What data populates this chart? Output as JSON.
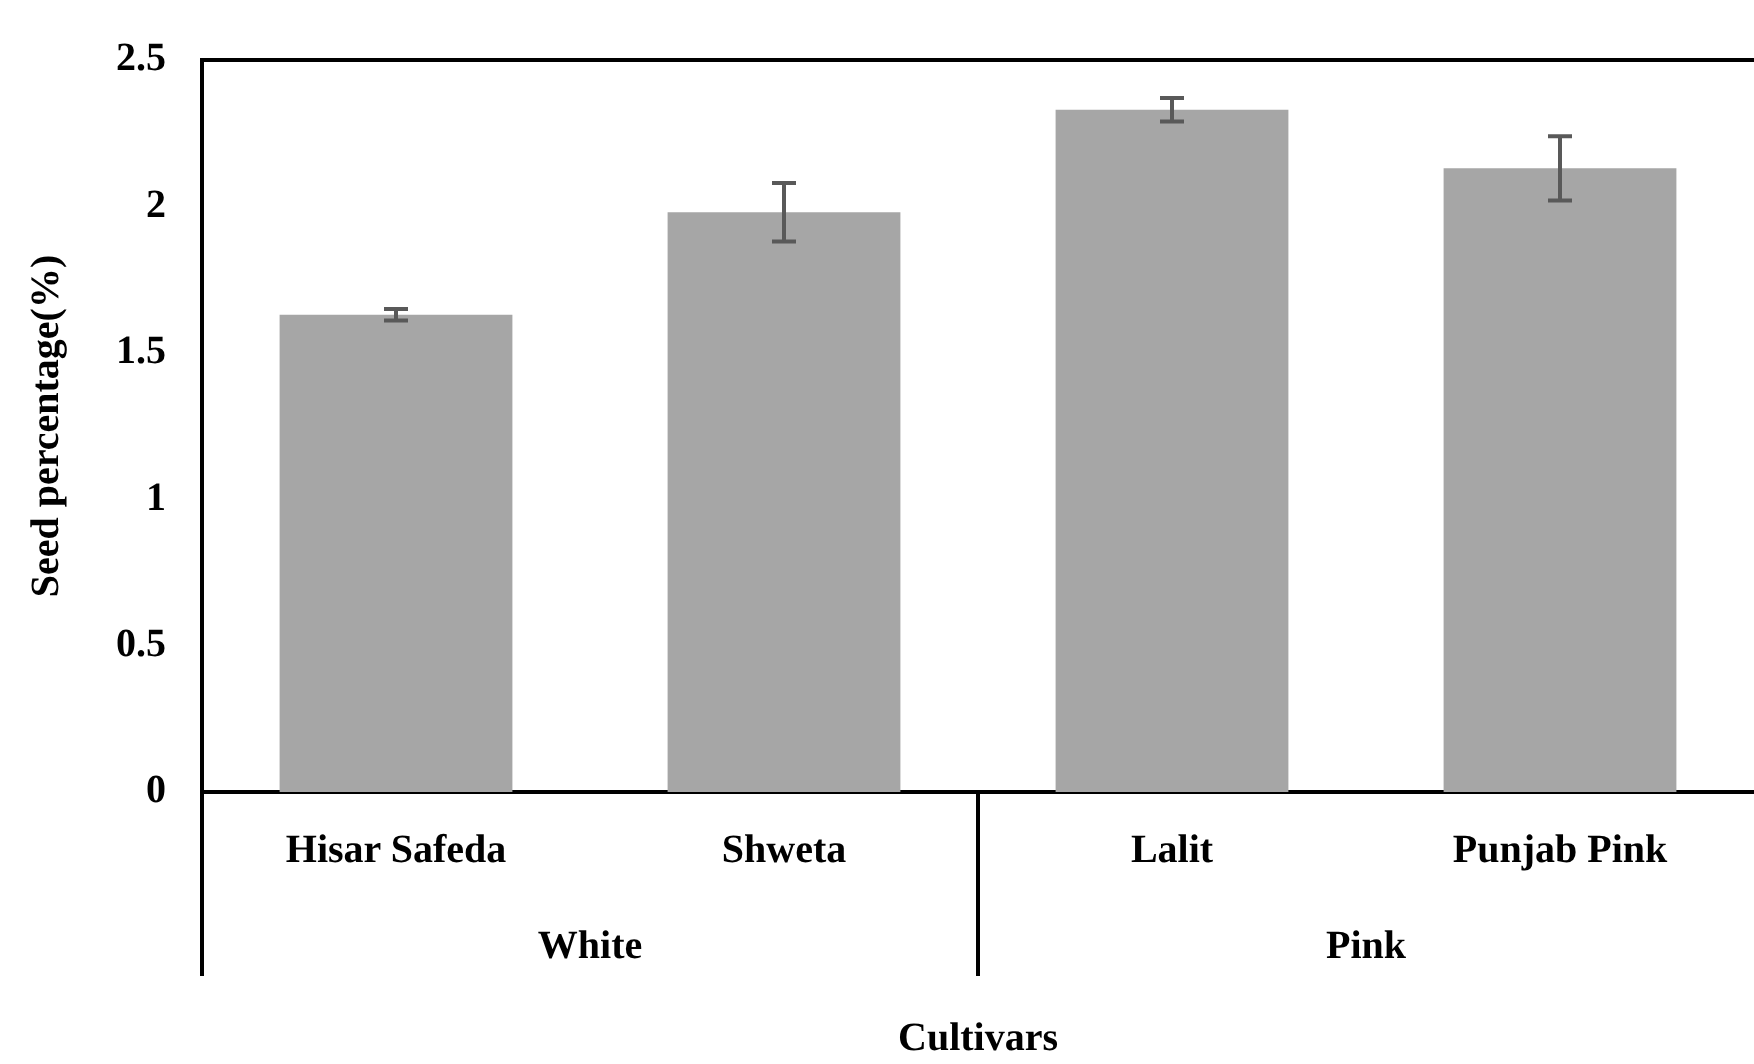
{
  "chart_data": {
    "type": "bar",
    "xlabel": "Cultivars",
    "ylabel": "Seed percentage(%)",
    "categories": [
      "Hisar Safeda",
      "Shweta",
      "Lalit",
      "Punjab Pink"
    ],
    "values": [
      1.63,
      1.98,
      2.33,
      2.13
    ],
    "errors": [
      0.02,
      0.1,
      0.04,
      0.11
    ],
    "color": "#a6a6a6",
    "ylim": [
      0,
      2.5
    ],
    "yticks": [
      0,
      0.5,
      1,
      1.5,
      2,
      2.5
    ],
    "grid": false,
    "legend": false,
    "annotations": [
      "White",
      "Pink"
    ]
  }
}
